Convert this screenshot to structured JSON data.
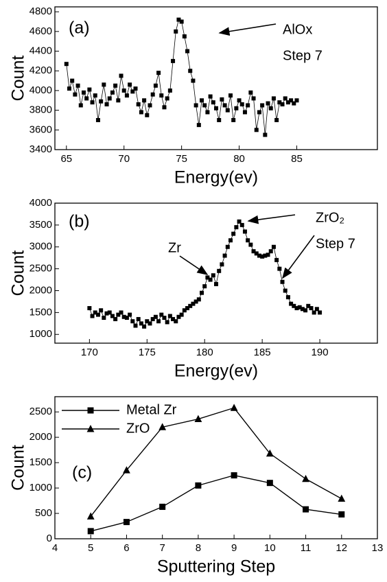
{
  "chart_data": [
    {
      "type": "line",
      "panel_label": "(a)",
      "xlabel": "Energy(ev)",
      "ylabel": "Count",
      "annotations": [
        "AlOx",
        "Step 7"
      ],
      "xlim": [
        64,
        92
      ],
      "xticks": [
        65,
        70,
        75,
        80,
        85
      ],
      "ylim": [
        3400,
        4850
      ],
      "yticks": [
        3400,
        3600,
        3800,
        4000,
        4200,
        4400,
        4600,
        4800
      ],
      "series": [
        {
          "color": "#000000",
          "marker": "square",
          "x": [
            65,
            65.25,
            65.5,
            65.75,
            66,
            66.25,
            66.5,
            66.75,
            67,
            67.25,
            67.5,
            67.75,
            68,
            68.25,
            68.5,
            68.75,
            69,
            69.25,
            69.5,
            69.75,
            70,
            70.25,
            70.5,
            70.75,
            71,
            71.25,
            71.5,
            71.75,
            72,
            72.25,
            72.5,
            72.75,
            73,
            73.25,
            73.5,
            73.75,
            74,
            74.25,
            74.5,
            74.75,
            75,
            75.25,
            75.5,
            75.75,
            76,
            76.25,
            76.5,
            76.75,
            77,
            77.25,
            77.5,
            77.75,
            78,
            78.25,
            78.5,
            78.75,
            79,
            79.25,
            79.5,
            79.75,
            80,
            80.25,
            80.5,
            80.75,
            81,
            81.25,
            81.5,
            81.75,
            82,
            82.25,
            82.5,
            82.75,
            83,
            83.25,
            83.5,
            83.75,
            84,
            84.25,
            84.5,
            84.75,
            85
          ],
          "values": [
            4270,
            4020,
            4100,
            3960,
            4050,
            3850,
            3980,
            3920,
            4010,
            3880,
            3950,
            3700,
            3890,
            4060,
            3860,
            3920,
            3980,
            4050,
            3900,
            4150,
            4000,
            3950,
            4060,
            3990,
            4020,
            3860,
            3780,
            3900,
            3750,
            3850,
            3960,
            4050,
            4180,
            3950,
            3830,
            3920,
            4000,
            4300,
            4600,
            4720,
            4700,
            4550,
            4400,
            4200,
            4100,
            3850,
            3650,
            3900,
            3850,
            3780,
            3940,
            3880,
            3820,
            3700,
            3910,
            3850,
            3800,
            3950,
            3700,
            3820,
            3900,
            3860,
            3780,
            3850,
            3980,
            3920,
            3600,
            3780,
            3850,
            3550,
            3870,
            3820,
            3920,
            3700,
            3880,
            3860,
            3920,
            3880,
            3900,
            3870,
            3900
          ]
        }
      ]
    },
    {
      "type": "line",
      "panel_label": "(b)",
      "xlabel": "Energy(ev)",
      "ylabel": "Count",
      "annotations": [
        "Zr",
        "ZrO₂",
        "Step 7"
      ],
      "xlim": [
        167,
        195
      ],
      "xticks": [
        170,
        175,
        180,
        185,
        190
      ],
      "ylim": [
        800,
        4000
      ],
      "yticks": [
        1000,
        1500,
        2000,
        2500,
        3000,
        3500,
        4000
      ],
      "series": [
        {
          "color": "#000000",
          "marker": "square",
          "x": [
            170,
            170.25,
            170.5,
            170.75,
            171,
            171.25,
            171.5,
            171.75,
            172,
            172.25,
            172.5,
            172.75,
            173,
            173.25,
            173.5,
            173.75,
            174,
            174.25,
            174.5,
            174.75,
            175,
            175.25,
            175.5,
            175.75,
            176,
            176.25,
            176.5,
            176.75,
            177,
            177.25,
            177.5,
            177.75,
            178,
            178.25,
            178.5,
            178.75,
            179,
            179.25,
            179.5,
            179.75,
            180,
            180.25,
            180.5,
            180.75,
            181,
            181.25,
            181.5,
            181.75,
            182,
            182.25,
            182.5,
            182.75,
            183,
            183.25,
            183.5,
            183.75,
            184,
            184.25,
            184.5,
            184.75,
            185,
            185.25,
            185.5,
            185.75,
            186,
            186.25,
            186.5,
            186.75,
            187,
            187.25,
            187.5,
            187.75,
            188,
            188.25,
            188.5,
            188.75,
            189,
            189.25,
            189.5,
            189.75,
            190
          ],
          "values": [
            1600,
            1420,
            1500,
            1450,
            1550,
            1380,
            1480,
            1500,
            1420,
            1350,
            1450,
            1500,
            1400,
            1380,
            1450,
            1300,
            1200,
            1350,
            1250,
            1180,
            1300,
            1250,
            1350,
            1400,
            1300,
            1450,
            1380,
            1280,
            1420,
            1350,
            1300,
            1400,
            1450,
            1550,
            1600,
            1650,
            1700,
            1750,
            1800,
            1950,
            2100,
            2300,
            2250,
            2350,
            2150,
            2450,
            2600,
            2800,
            3000,
            3150,
            3300,
            3450,
            3580,
            3500,
            3350,
            3150,
            3050,
            2900,
            2850,
            2800,
            2780,
            2800,
            2820,
            2900,
            3000,
            2700,
            2500,
            2200,
            2000,
            1850,
            1700,
            1650,
            1600,
            1620,
            1580,
            1550,
            1650,
            1600,
            1500,
            1580,
            1500
          ]
        }
      ]
    },
    {
      "type": "line",
      "panel_label": "(c)",
      "xlabel": "Sputtering Step",
      "ylabel": "Count",
      "legend": "upper left",
      "xlim": [
        4,
        13
      ],
      "xticks": [
        4,
        5,
        6,
        7,
        8,
        9,
        10,
        11,
        12,
        13
      ],
      "ylim": [
        0,
        2800
      ],
      "yticks": [
        0,
        500,
        1000,
        1500,
        2000,
        2500
      ],
      "series": [
        {
          "name": "Metal Zr",
          "color": "#000000",
          "marker": "square",
          "x": [
            5,
            6,
            7,
            8,
            9,
            10,
            11,
            12
          ],
          "values": [
            150,
            330,
            630,
            1050,
            1250,
            1100,
            580,
            480
          ]
        },
        {
          "name": "ZrO",
          "color": "#000000",
          "marker": "triangle",
          "x": [
            5,
            6,
            7,
            8,
            9,
            10,
            11,
            12
          ],
          "values": [
            440,
            1350,
            2200,
            2360,
            2580,
            1680,
            1180,
            790
          ]
        }
      ]
    }
  ]
}
